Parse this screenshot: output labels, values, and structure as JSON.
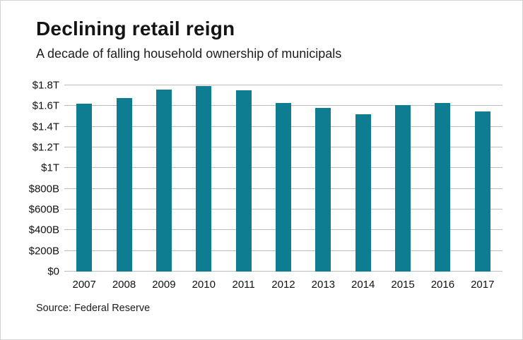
{
  "header": {
    "title": "Declining retail reign",
    "subtitle": "A decade of falling household ownership of municipals"
  },
  "footer": {
    "source": "Source: Federal Reserve"
  },
  "chart_data": {
    "type": "bar",
    "title": "Declining retail reign",
    "subtitle": "A decade of falling household ownership of municipals",
    "source": "Source: Federal Reserve",
    "categories": [
      "2007",
      "2008",
      "2009",
      "2010",
      "2011",
      "2012",
      "2013",
      "2014",
      "2015",
      "2016",
      "2017"
    ],
    "values": [
      1.62,
      1.68,
      1.76,
      1.79,
      1.75,
      1.63,
      1.58,
      1.52,
      1.61,
      1.63,
      1.55
    ],
    "unit": "USD (T = trillions, B = billions)",
    "ylim": [
      0,
      1.8
    ],
    "yticks": [
      {
        "label": "$0",
        "value": 0
      },
      {
        "label": "$200B",
        "value": 0.2
      },
      {
        "label": "$400B",
        "value": 0.4
      },
      {
        "label": "$600B",
        "value": 0.6
      },
      {
        "label": "$800B",
        "value": 0.8
      },
      {
        "label": "$1T",
        "value": 1.0
      },
      {
        "label": "$1.2T",
        "value": 1.2
      },
      {
        "label": "$1.4T",
        "value": 1.4
      },
      {
        "label": "$1.6T",
        "value": 1.6
      },
      {
        "label": "$1.8T",
        "value": 1.8
      }
    ],
    "bar_color": "#0e7c91",
    "grid": "horizontal",
    "legend": "none"
  }
}
